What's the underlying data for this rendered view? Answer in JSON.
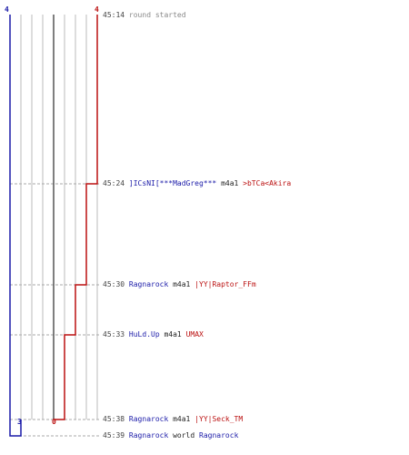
{
  "colors": {
    "team_blue": "#1a1aa8",
    "team_red": "#bb1111",
    "grid": "#bbbbbb",
    "dash": "#aaaaaa",
    "center": "#555555"
  },
  "scores": {
    "blue_start": "4",
    "red_start": "4",
    "blue_end": "3",
    "red_end": "0"
  },
  "events": [
    {
      "time": "45:14",
      "message": "round started"
    },
    {
      "time": "45:24",
      "killer": "]ICsNI[***MadGreg***",
      "killer_team": "blue",
      "action": "m4a1",
      "victim": ">bTCa<Akira",
      "victim_team": "red"
    },
    {
      "time": "45:30",
      "killer": "Ragnarock",
      "killer_team": "blue",
      "action": "m4a1",
      "victim": "|YY|Raptor_FFm",
      "victim_team": "red"
    },
    {
      "time": "45:33",
      "killer": "HuLd.Up",
      "killer_team": "blue",
      "action": "m4a1",
      "victim": "UMAX",
      "victim_team": "red"
    },
    {
      "time": "45:38",
      "killer": "Ragnarock",
      "killer_team": "blue",
      "action": "m4a1",
      "victim": "|YY|Seck_TM",
      "victim_team": "red"
    },
    {
      "time": "45:39",
      "killer": "Ragnarock",
      "killer_team": "blue",
      "action": "world",
      "victim": "Ragnarock",
      "victim_team": "blue"
    }
  ]
}
